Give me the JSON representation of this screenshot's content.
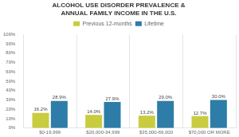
{
  "chart_data": {
    "type": "bar",
    "title": [
      "ALCOHOL USE DISORDER PREVALENCE &",
      "ANNUAL FAMILY INCOME IN THE U.S."
    ],
    "categories": [
      "$0-19,999",
      "$20,000-34,999",
      "$35,000-69,000",
      "$70,000 OR MORE"
    ],
    "series": [
      {
        "name": "Previous 12-months",
        "color": "#c8cc3f",
        "values": [
          16.2,
          14.0,
          13.2,
          12.7
        ],
        "value_labels": [
          "16.2%",
          "14.0%",
          "13.2%",
          "12.7%"
        ]
      },
      {
        "name": "Lifetime",
        "color": "#2d7da8",
        "values": [
          28.9,
          27.9,
          29.0,
          30.0
        ],
        "value_labels": [
          "28.9%",
          "27.9%",
          "29.0%",
          "30.0%"
        ]
      }
    ],
    "ylim": [
      0,
      100
    ],
    "yticks": [
      {
        "value": 0,
        "label": "0%"
      },
      {
        "value": 10,
        "label": "10%"
      },
      {
        "value": 20,
        "label": "20%"
      },
      {
        "value": 30,
        "label": "30%"
      },
      {
        "value": 40,
        "label": "40%"
      },
      {
        "value": 50,
        "label": "50%"
      },
      {
        "value": 60,
        "label": "60%"
      },
      {
        "value": 70,
        "label": "70%"
      },
      {
        "value": 80,
        "label": "80%"
      },
      {
        "value": 90,
        "label": "90%"
      },
      {
        "value": 100,
        "label": "100%"
      }
    ],
    "grid": "x",
    "legend": "top",
    "data_labels": true
  }
}
